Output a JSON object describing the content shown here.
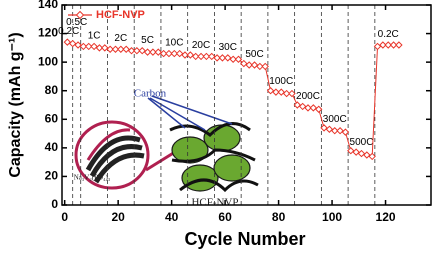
{
  "chart_data": {
    "type": "line",
    "xlabel": "Cycle Number",
    "ylabel": "Capacity (mAh g⁻¹)",
    "xlim": [
      -1,
      137
    ],
    "ylim": [
      0,
      140
    ],
    "xticks": [
      0,
      20,
      40,
      60,
      80,
      100,
      120
    ],
    "yticks": [
      0,
      20,
      40,
      60,
      80,
      100,
      120,
      140
    ],
    "series": [
      {
        "name": "HCF-NVP",
        "color": "#e8352a",
        "x": [
          1,
          3,
          5,
          7,
          9,
          11,
          13,
          15,
          17,
          19,
          21,
          23,
          25,
          27,
          29,
          31,
          33,
          35,
          37,
          39,
          41,
          43,
          45,
          47,
          49,
          51,
          53,
          55,
          57,
          59,
          61,
          63,
          65,
          67,
          69,
          71,
          73,
          75,
          77,
          79,
          81,
          83,
          85,
          87,
          89,
          91,
          93,
          95,
          97,
          99,
          101,
          103,
          105,
          107,
          109,
          111,
          113,
          115,
          117,
          119,
          121,
          123,
          125
        ],
        "values": [
          114,
          113,
          112,
          111,
          111,
          111,
          110,
          110,
          109,
          109,
          109,
          109,
          108,
          108,
          108,
          107,
          107,
          107,
          106,
          106,
          106,
          106,
          105,
          105,
          104,
          104,
          104,
          104,
          103,
          103,
          103,
          102,
          102,
          99,
          98,
          98,
          97,
          97,
          80,
          79,
          79,
          78,
          78,
          70,
          69,
          68,
          68,
          67,
          54,
          53,
          52,
          52,
          51,
          38,
          37,
          36,
          35,
          34,
          111,
          112,
          112,
          112,
          112
        ]
      }
    ],
    "segments": [
      {
        "label": "0.2C",
        "start": 0,
        "end": 3
      },
      {
        "label": "0.5C",
        "start": 3,
        "end": 6
      },
      {
        "label": "1C",
        "start": 6,
        "end": 16
      },
      {
        "label": "2C",
        "start": 16,
        "end": 26
      },
      {
        "label": "5C",
        "start": 26,
        "end": 36
      },
      {
        "label": "10C",
        "start": 36,
        "end": 46
      },
      {
        "label": "20C",
        "start": 46,
        "end": 56
      },
      {
        "label": "30C",
        "start": 56,
        "end": 66
      },
      {
        "label": "50C",
        "start": 66,
        "end": 76
      },
      {
        "label": "100C",
        "start": 76,
        "end": 86
      },
      {
        "label": "200C",
        "start": 86,
        "end": 96
      },
      {
        "label": "300C",
        "start": 96,
        "end": 106
      },
      {
        "label": "500C",
        "start": 106,
        "end": 116
      },
      {
        "label": "0.2C",
        "start": 116,
        "end": 126
      }
    ],
    "inset": {
      "carbon": "Carbon",
      "particle": "Na₃V₂(PO₄)₃",
      "composite": "HCF-NVP"
    }
  }
}
